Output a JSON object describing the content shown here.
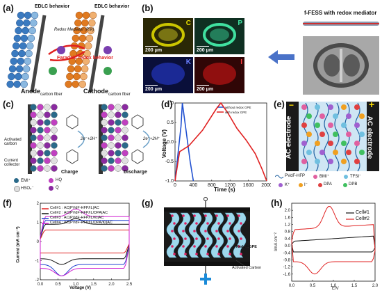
{
  "panels": {
    "a": {
      "label": "(a)",
      "left_title": "EDLC behavior",
      "right_title": "EDLC behavior",
      "mediator": "Redox Mediator (RM)",
      "faradaic": "Faradaic redox behavior",
      "rm": "RM",
      "anode": "Anode",
      "anode_sub": "carbon fiber",
      "cathode": "Cathode",
      "cathode_sub": "carbon fiber"
    },
    "b": {
      "label": "(b)",
      "title": "f-FESS with redox mediator",
      "maps": [
        {
          "element": "C",
          "scale": "200 μm",
          "color": "#e8e000"
        },
        {
          "element": "P",
          "scale": "200 μm",
          "color": "#40e0a0"
        },
        {
          "element": "K",
          "scale": "200 μm",
          "color": "#2a3fe0"
        },
        {
          "element": "I",
          "scale": "200 μm",
          "color": "#e01818"
        }
      ]
    },
    "c": {
      "label": "(c)",
      "activated": "Activated carbon",
      "collector": "Current collector",
      "charge": "Charge",
      "discharge": "Discharge",
      "reaction": "2e⁻+2H⁺",
      "legend": [
        "EMI⁺",
        "HQ",
        "HSO₄⁻",
        "Q"
      ]
    },
    "d": {
      "label": "(d)",
      "ylabel": "Voltage (V)",
      "xlabel": "Time (s)",
      "legend": [
        "without redox GPE",
        "with redox GPE"
      ]
    },
    "e": {
      "label": "(e)",
      "left_electrode": "AC electrode",
      "right_electrode": "AC electrode",
      "minus": "−",
      "plus": "+",
      "legend": [
        "PVdF-HFP",
        "BMI⁺",
        "TFSI⁻",
        "K⁺",
        "I⁻",
        "DPA",
        "DPB"
      ]
    },
    "f": {
      "label": "(f)",
      "ylabel": "Current (mA cm⁻²)",
      "xlabel": "Voltage (V)",
      "legend": [
        "Cell#1 : AC|PVdF-HFP/IL|AC",
        "Cell#2 : AC|PVdF-HFP/IL/DPA|AC",
        "Cell#3 : AC|PVdF-HFP/IL/KI|AC",
        "Cell#4 : AC|PVdF-HFP/IL/DPA/KI|AC"
      ]
    },
    "g": {
      "label": "(g)",
      "redox_gpe": "Redox GPE",
      "activated_carbon": "Activated Carbon"
    },
    "h": {
      "label": "(h)",
      "ylabel": "I/mA cm⁻²",
      "xlabel": "E/V",
      "legend": [
        "Cell#1",
        "Cell#2"
      ]
    }
  },
  "chart_data": [
    {
      "type": "line",
      "panel": "d",
      "xlabel": "Time (s)",
      "ylabel": "Voltage (V)",
      "xlim": [
        0,
        2000
      ],
      "ylim": [
        -1.0,
        1.0
      ],
      "xticks": [
        0,
        400,
        800,
        1200,
        1600,
        2000
      ],
      "yticks": [
        -1.0,
        -0.5,
        0.0,
        0.5,
        1.0
      ],
      "series": [
        {
          "name": "without redox GPE",
          "color": "#2050d0",
          "x": [
            0,
            130,
            160,
            240,
            330,
            400
          ],
          "y": [
            -1.0,
            0.4,
            1.0,
            0.3,
            -0.5,
            -1.0
          ]
        },
        {
          "name": "with redox GPE",
          "color": "#e02020",
          "x": [
            0,
            100,
            300,
            600,
            900,
            1000,
            1150,
            1350,
            1550,
            1750,
            1900,
            2000
          ],
          "y": [
            -1.0,
            -0.25,
            -0.1,
            0.3,
            0.85,
            1.0,
            0.75,
            0.35,
            0.05,
            -0.3,
            -0.7,
            -1.0
          ]
        }
      ]
    },
    {
      "type": "line",
      "panel": "f",
      "xlabel": "Voltage (V)",
      "ylabel": "Current (mA cm⁻²)",
      "xlim": [
        0,
        2.5
      ],
      "ylim": [
        -2,
        2
      ],
      "xticks": [
        0.0,
        0.5,
        1.0,
        1.5,
        2.0,
        2.5
      ],
      "yticks": [
        -2,
        -1,
        0,
        1,
        2
      ],
      "series": [
        {
          "name": "Cell#1",
          "color": "#e02020"
        },
        {
          "name": "Cell#2",
          "color": "#111111"
        },
        {
          "name": "Cell#3",
          "color": "#2040d0"
        },
        {
          "name": "Cell#4",
          "color": "#d020d0"
        }
      ]
    },
    {
      "type": "line",
      "panel": "h",
      "xlabel": "E/V",
      "ylabel": "I/mA cm⁻²",
      "xlim": [
        0,
        2.0
      ],
      "ylim": [
        -2.0,
        2.4
      ],
      "xticks": [
        0.0,
        0.5,
        1.0,
        1.5,
        2.0
      ],
      "yticks": [
        -1.6,
        -1.2,
        -0.8,
        -0.4,
        0.0,
        0.4,
        0.8,
        1.2,
        1.6,
        2.0
      ],
      "series": [
        {
          "name": "Cell#1",
          "color": "#111111"
        },
        {
          "name": "Cell#2",
          "color": "#e02020"
        }
      ]
    }
  ]
}
